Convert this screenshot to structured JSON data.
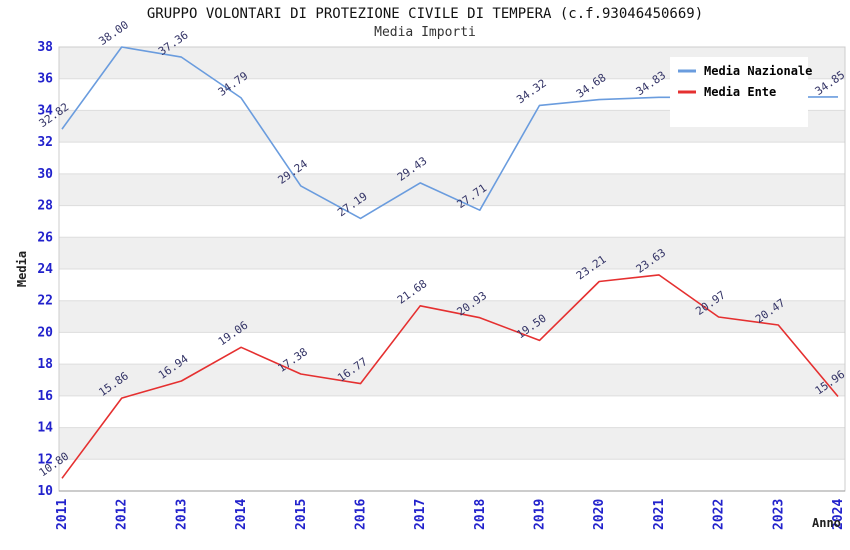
{
  "title": "GRUPPO VOLONTARI DI PROTEZIONE CIVILE DI TEMPERA (c.f.93046450669)",
  "subtitle": "Media Importi",
  "colors": {
    "national_line": "#6a9cde",
    "entity_line": "#e53030",
    "tick_label": "#2222cc",
    "data_label": "#333366",
    "band": "#efefef",
    "grid": "#dddddd",
    "plot_border": "#cccccc",
    "axis_line": "#999999",
    "legend_bg": "#ffffff"
  },
  "chart_data": {
    "type": "line",
    "title": "GRUPPO VOLONTARI DI PROTEZIONE CIVILE DI TEMPERA (c.f.93046450669)",
    "subtitle": "Media Importi",
    "xlabel": "Anno",
    "ylabel": "Media",
    "ylim": [
      10,
      38
    ],
    "ytick_step": 2,
    "grid": "horizontal-bands",
    "legend_position": "top-right",
    "categories": [
      "2011",
      "2012",
      "2013",
      "2014",
      "2015",
      "2016",
      "2017",
      "2018",
      "2019",
      "2020",
      "2021",
      "2022",
      "2023",
      "2024"
    ],
    "series": [
      {
        "name": "Media Nazionale",
        "color": "#6a9cde",
        "values": [
          32.82,
          38.0,
          37.36,
          34.79,
          29.24,
          27.19,
          29.43,
          27.71,
          34.32,
          34.68,
          34.83,
          34.83,
          34.84,
          34.85
        ],
        "labels": [
          "32.82",
          "38.00",
          "37.36",
          "34.79",
          "29.24",
          "27.19",
          "29.43",
          "27.71",
          "34.32",
          "34.68",
          "34.83",
          null,
          null,
          "34.85"
        ]
      },
      {
        "name": "Media Ente",
        "color": "#e53030",
        "values": [
          10.8,
          15.86,
          16.94,
          19.06,
          17.38,
          16.77,
          21.68,
          20.93,
          19.5,
          23.21,
          23.63,
          20.97,
          20.47,
          15.96
        ],
        "labels": [
          "10.80",
          "15.86",
          "16.94",
          "19.06",
          "17.38",
          "16.77",
          "21.68",
          "20.93",
          "19.50",
          "23.21",
          "23.63",
          "20.97",
          "20.47",
          "15.96"
        ]
      }
    ]
  }
}
